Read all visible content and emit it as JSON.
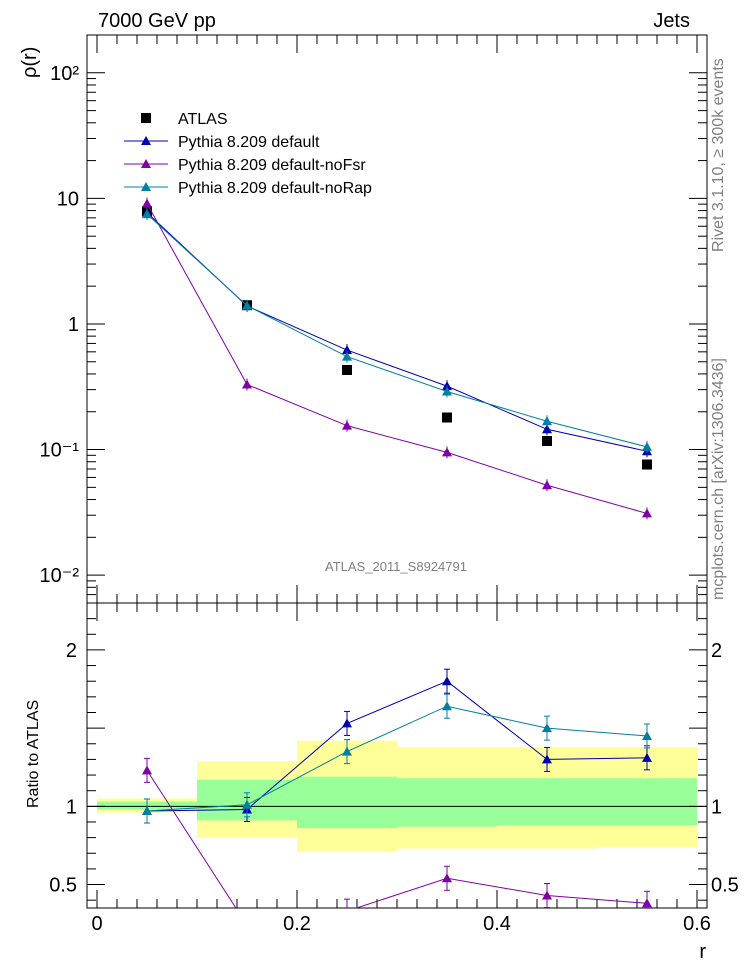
{
  "header": {
    "left": "7000 GeV pp",
    "right": "Jets"
  },
  "side_text": {
    "top": "Rivet 3.1.10, ≥ 300k events",
    "bottom": "mcplots.cern.ch [arXiv:1306.3436]"
  },
  "watermark": "ATLAS_2011_S8924791",
  "chart_data": [
    {
      "type": "line",
      "panel": "main",
      "ylabel": "ρ(r)",
      "yscale": "log",
      "ylim": [
        0.006,
        200
      ],
      "xlim": [
        -0.01,
        0.61
      ],
      "ytick_labels": [
        "10⁻²",
        "10⁻¹",
        "1",
        "10",
        "10²"
      ],
      "legend_position": "top-left",
      "x": [
        0.05,
        0.15,
        0.25,
        0.35,
        0.45,
        0.55
      ],
      "series": [
        {
          "name": "ATLAS",
          "color": "#000000",
          "marker": "square",
          "values": [
            7.9,
            1.41,
            0.43,
            0.18,
            0.117,
            0.076
          ]
        },
        {
          "name": "Pythia 8.209 default",
          "color": "#0000b3",
          "marker": "triangle",
          "values": [
            7.7,
            1.39,
            0.62,
            0.32,
            0.145,
            0.097
          ]
        },
        {
          "name": "Pythia 8.209 default-noFsr",
          "color": "#8000a8",
          "marker": "triangle",
          "values": [
            9.1,
            0.33,
            0.155,
            0.095,
            0.052,
            0.031
          ]
        },
        {
          "name": "Pythia 8.209 default-noRap",
          "color": "#0080a0",
          "marker": "triangle",
          "values": [
            7.5,
            1.4,
            0.55,
            0.29,
            0.168,
            0.105
          ]
        }
      ]
    },
    {
      "type": "line",
      "panel": "ratio",
      "xlabel": "r",
      "ylabel": "Ratio to ATLAS",
      "ylim": [
        0.35,
        2.3
      ],
      "xlim": [
        -0.01,
        0.61
      ],
      "xticks": [
        0,
        0.2,
        0.4,
        0.6
      ],
      "xtick_labels": [
        "0",
        "0.2",
        "0.4",
        "0.6"
      ],
      "yticks": [
        0.5,
        1,
        2
      ],
      "ytick_labels": [
        "0.5",
        "1",
        "2"
      ],
      "bands": {
        "bins": [
          [
            0.0,
            0.1
          ],
          [
            0.1,
            0.2
          ],
          [
            0.2,
            0.3
          ],
          [
            0.3,
            0.4
          ],
          [
            0.4,
            0.5
          ],
          [
            0.5,
            0.6
          ]
        ],
        "yellow": [
          [
            0.96,
            1.05
          ],
          [
            0.8,
            1.29
          ],
          [
            0.71,
            1.42
          ],
          [
            0.73,
            1.38
          ],
          [
            0.73,
            1.38
          ],
          [
            0.74,
            1.38
          ]
        ],
        "green": [
          [
            0.98,
            1.03
          ],
          [
            0.91,
            1.17
          ],
          [
            0.86,
            1.19
          ],
          [
            0.87,
            1.18
          ],
          [
            0.88,
            1.18
          ],
          [
            0.88,
            1.18
          ]
        ],
        "yellow_color": "#ffff99",
        "green_color": "#99ff99"
      },
      "x": [
        0.05,
        0.15,
        0.25,
        0.35,
        0.45,
        0.55
      ],
      "series": [
        {
          "name": "Pythia 8.209 default",
          "color": "#0000b3",
          "values": [
            0.97,
            0.98,
            1.53,
            1.8,
            1.3,
            1.31
          ]
        },
        {
          "name": "Pythia 8.209 default-noFsr",
          "color": "#8000a8",
          "values": [
            1.23,
            0.24,
            0.33,
            0.54,
            0.43,
            0.38
          ]
        },
        {
          "name": "Pythia 8.209 default-noRap",
          "color": "#0080a0",
          "values": [
            0.97,
            1.01,
            1.35,
            1.64,
            1.5,
            1.45
          ]
        }
      ]
    }
  ]
}
